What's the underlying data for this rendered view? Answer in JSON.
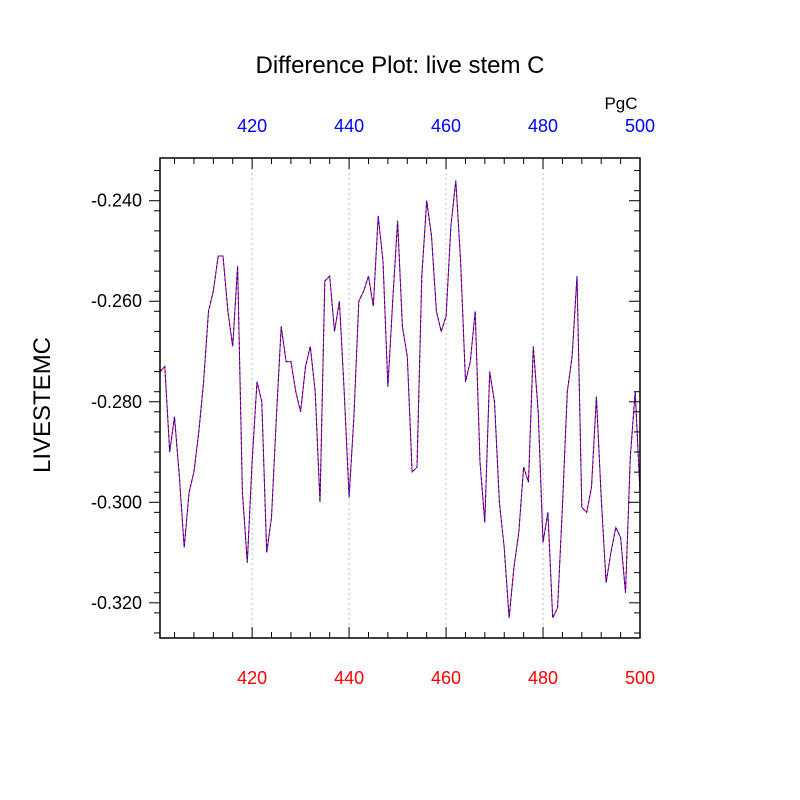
{
  "chart_data": {
    "type": "line",
    "title": "Difference Plot: live stem C",
    "ylabel": "LIVESTEMC",
    "units_label": "PgC",
    "xlim": [
      401,
      500
    ],
    "ylim": [
      -0.327,
      -0.2315
    ],
    "bottom_axis_ticks": [
      "420",
      "440",
      "460",
      "480",
      "500"
    ],
    "top_axis_ticks": [
      "420",
      "440",
      "460",
      "480",
      "500"
    ],
    "bottom_axis_color": "#ff0000",
    "top_axis_color": "#0000ff",
    "y_ticks": [
      "-0.240",
      "-0.260",
      "-0.280",
      "-0.300",
      "-0.320"
    ],
    "vertical_grid": true,
    "series": [
      {
        "color": "#ff0000",
        "dash": false,
        "x": [
          401,
          402,
          403,
          404,
          405,
          406,
          407,
          408,
          409,
          410,
          411,
          412,
          413,
          414,
          415,
          416,
          417,
          418,
          419,
          420,
          421,
          422,
          423,
          424,
          425,
          426,
          427,
          428,
          429,
          430,
          431,
          432,
          433,
          434,
          435,
          436,
          437,
          438,
          439,
          440,
          441,
          442,
          443,
          444,
          445,
          446,
          447,
          448,
          449,
          450,
          451,
          452,
          453,
          454,
          455,
          456,
          457,
          458,
          459,
          460,
          461,
          462,
          463,
          464,
          465,
          466,
          467,
          468,
          469,
          470,
          471,
          472,
          473,
          474,
          475,
          476,
          477,
          478,
          479,
          480,
          481,
          482,
          483,
          484,
          485,
          486,
          487,
          488,
          489,
          490,
          491,
          492,
          493,
          494,
          495,
          496,
          497,
          498,
          499,
          500
        ],
        "y": [
          -0.274,
          -0.273,
          -0.29,
          -0.283,
          -0.295,
          -0.309,
          -0.298,
          -0.294,
          -0.286,
          -0.276,
          -0.262,
          -0.258,
          -0.251,
          -0.251,
          -0.262,
          -0.269,
          -0.253,
          -0.298,
          -0.312,
          -0.292,
          -0.276,
          -0.28,
          -0.31,
          -0.303,
          -0.283,
          -0.265,
          -0.272,
          -0.272,
          -0.278,
          -0.282,
          -0.273,
          -0.269,
          -0.278,
          -0.3,
          -0.256,
          -0.255,
          -0.266,
          -0.26,
          -0.278,
          -0.299,
          -0.283,
          -0.26,
          -0.258,
          -0.255,
          -0.261,
          -0.243,
          -0.252,
          -0.277,
          -0.26,
          -0.244,
          -0.265,
          -0.271,
          -0.294,
          -0.293,
          -0.255,
          -0.24,
          -0.247,
          -0.262,
          -0.266,
          -0.263,
          -0.245,
          -0.236,
          -0.252,
          -0.276,
          -0.272,
          -0.262,
          -0.292,
          -0.304,
          -0.274,
          -0.28,
          -0.3,
          -0.309,
          -0.323,
          -0.313,
          -0.306,
          -0.293,
          -0.296,
          -0.269,
          -0.282,
          -0.308,
          -0.302,
          -0.323,
          -0.321,
          -0.301,
          -0.278,
          -0.271,
          -0.255,
          -0.301,
          -0.302,
          -0.297,
          -0.279,
          -0.299,
          -0.316,
          -0.31,
          -0.305,
          -0.307,
          -0.318,
          -0.291,
          -0.278,
          -0.298
        ]
      },
      {
        "color": "#0000ff",
        "dash": true,
        "x": [
          401,
          402,
          403,
          404,
          405,
          406,
          407,
          408,
          409,
          410,
          411,
          412,
          413,
          414,
          415,
          416,
          417,
          418,
          419,
          420,
          421,
          422,
          423,
          424,
          425,
          426,
          427,
          428,
          429,
          430,
          431,
          432,
          433,
          434,
          435,
          436,
          437,
          438,
          439,
          440,
          441,
          442,
          443,
          444,
          445,
          446,
          447,
          448,
          449,
          450,
          451,
          452,
          453,
          454,
          455,
          456,
          457,
          458,
          459,
          460,
          461,
          462,
          463,
          464,
          465,
          466,
          467,
          468,
          469,
          470,
          471,
          472,
          473,
          474,
          475,
          476,
          477,
          478,
          479,
          480,
          481,
          482,
          483,
          484,
          485,
          486,
          487,
          488,
          489,
          490,
          491,
          492,
          493,
          494,
          495,
          496,
          497,
          498,
          499,
          500
        ],
        "y": [
          -0.274,
          -0.273,
          -0.29,
          -0.283,
          -0.295,
          -0.309,
          -0.298,
          -0.294,
          -0.286,
          -0.276,
          -0.262,
          -0.258,
          -0.251,
          -0.251,
          -0.262,
          -0.269,
          -0.253,
          -0.298,
          -0.312,
          -0.292,
          -0.276,
          -0.28,
          -0.31,
          -0.303,
          -0.283,
          -0.265,
          -0.272,
          -0.272,
          -0.278,
          -0.282,
          -0.273,
          -0.269,
          -0.278,
          -0.3,
          -0.256,
          -0.255,
          -0.266,
          -0.26,
          -0.278,
          -0.299,
          -0.283,
          -0.26,
          -0.258,
          -0.255,
          -0.261,
          -0.243,
          -0.252,
          -0.277,
          -0.26,
          -0.244,
          -0.265,
          -0.271,
          -0.294,
          -0.293,
          -0.255,
          -0.24,
          -0.247,
          -0.262,
          -0.266,
          -0.263,
          -0.245,
          -0.236,
          -0.252,
          -0.276,
          -0.272,
          -0.262,
          -0.292,
          -0.304,
          -0.274,
          -0.28,
          -0.3,
          -0.309,
          -0.323,
          -0.313,
          -0.306,
          -0.293,
          -0.296,
          -0.269,
          -0.282,
          -0.308,
          -0.302,
          -0.323,
          -0.321,
          -0.301,
          -0.278,
          -0.271,
          -0.255,
          -0.301,
          -0.302,
          -0.297,
          -0.279,
          -0.299,
          -0.316,
          -0.31,
          -0.305,
          -0.307,
          -0.318,
          -0.291,
          -0.278,
          -0.298
        ]
      }
    ]
  }
}
